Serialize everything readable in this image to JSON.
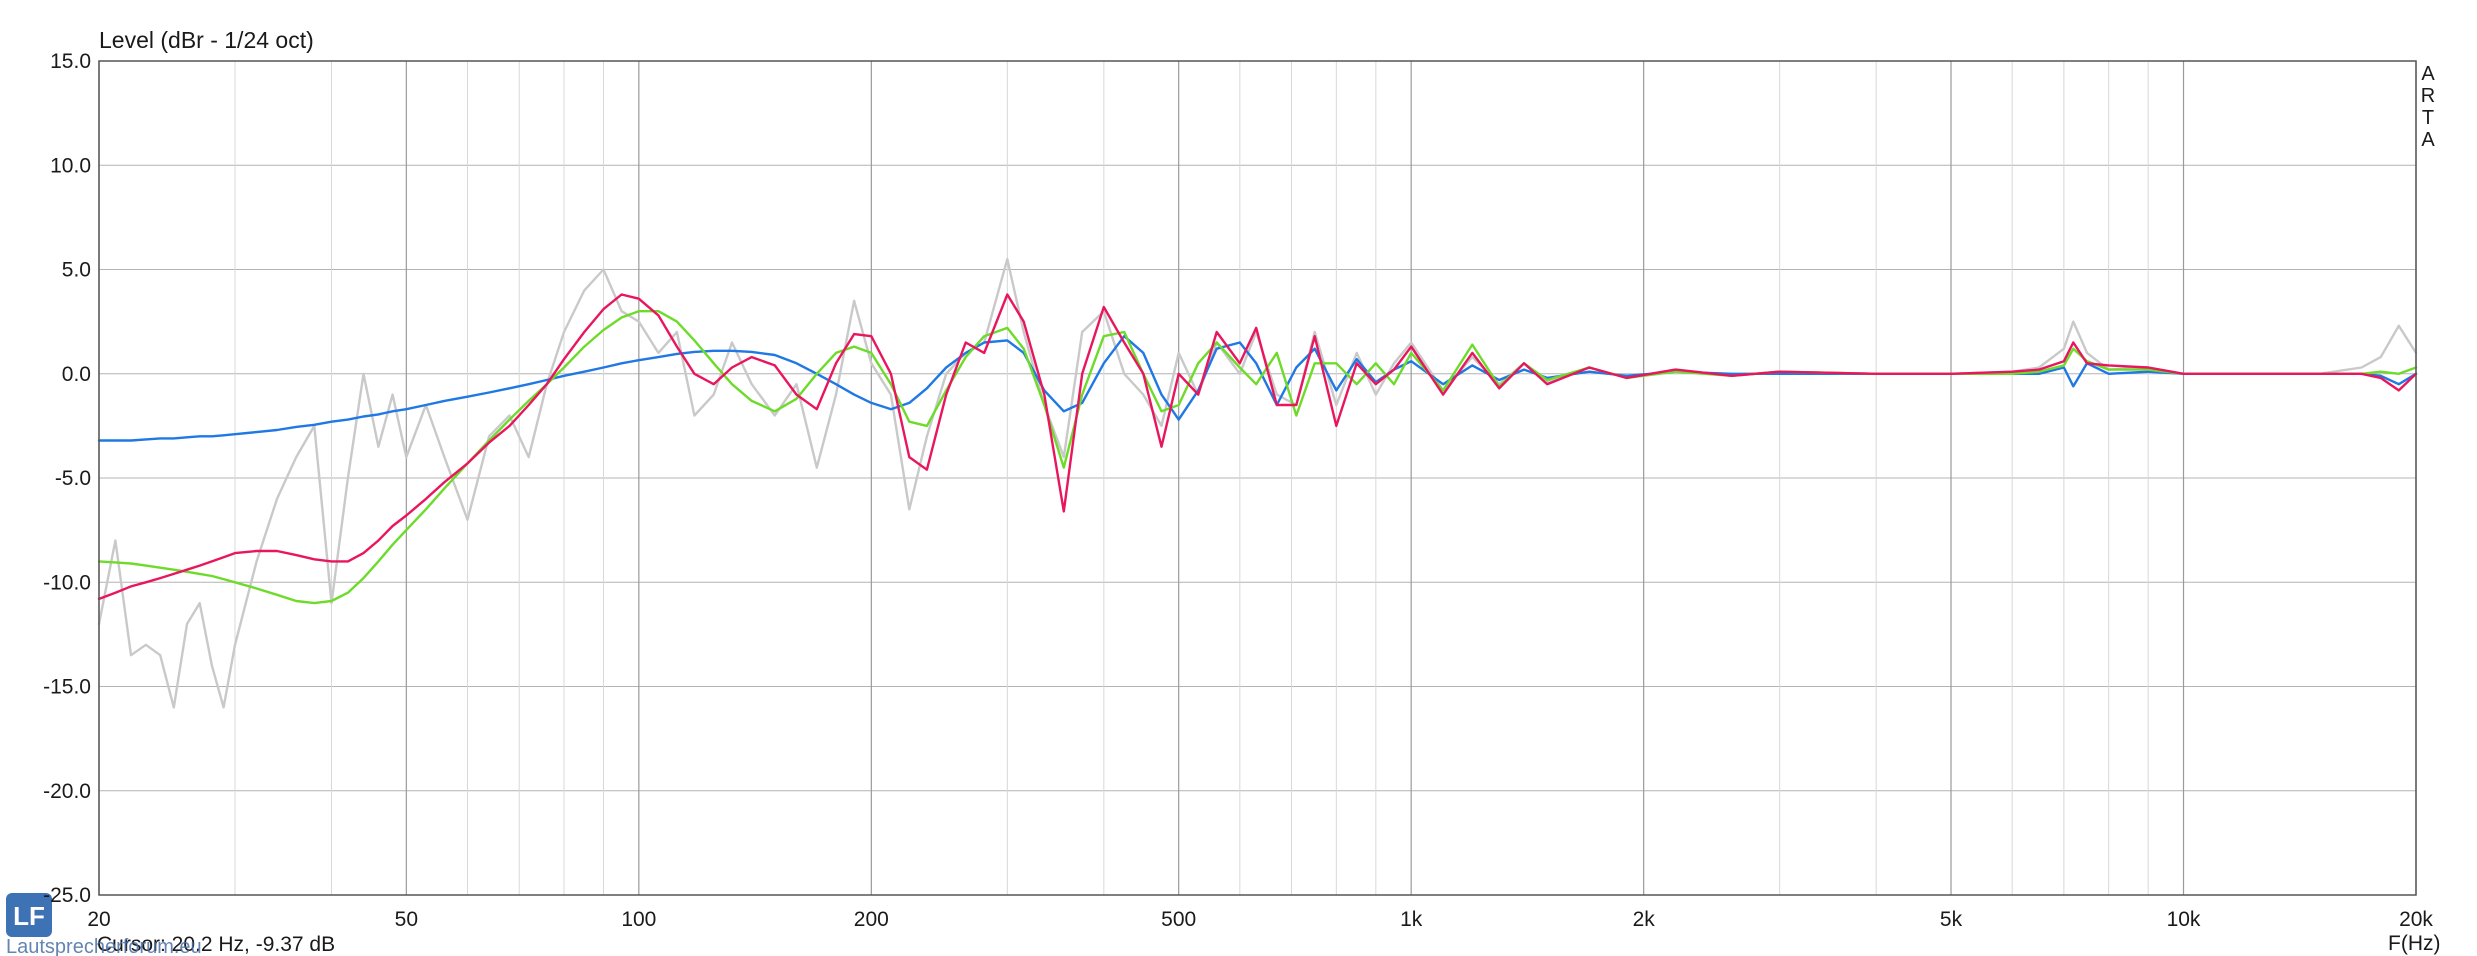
{
  "chart_data": {
    "type": "line",
    "title": "Level (dBr - 1/24 oct)",
    "x_label": "F(Hz)",
    "brand": [
      "A",
      "R",
      "T",
      "A"
    ],
    "cursor": "Cursor: 20.2 Hz, -9.37 dB",
    "logo": "LF",
    "watermark": "Lautsprecherforum.eu",
    "xscale": "log",
    "grid": true,
    "xlim": [
      20,
      20000
    ],
    "ylim": [
      -25,
      15
    ],
    "xticks": [
      20,
      50,
      100,
      200,
      500,
      {
        "value": 1000,
        "label": "1k"
      },
      {
        "value": 2000,
        "label": "2k"
      },
      {
        "value": 5000,
        "label": "5k"
      },
      {
        "value": 10000,
        "label": "10k"
      },
      {
        "value": 20000,
        "label": "20k"
      }
    ],
    "xminor": [
      30,
      40,
      60,
      70,
      80,
      90,
      300,
      400,
      600,
      700,
      800,
      900,
      3000,
      4000,
      6000,
      7000,
      8000,
      9000
    ],
    "yticks": [
      {
        "value": 15,
        "label": "15.0"
      },
      {
        "value": 10,
        "label": "10.0"
      },
      {
        "value": 5,
        "label": "5.0"
      },
      {
        "value": 0,
        "label": "0.0"
      },
      {
        "value": -5,
        "label": "-5.0"
      },
      {
        "value": -10,
        "label": "-10.0"
      },
      {
        "value": -15,
        "label": "-15.0"
      },
      {
        "value": -20,
        "label": "-20.0"
      },
      {
        "value": -25,
        "label": "-25.0"
      }
    ],
    "x": [
      20,
      21,
      22,
      23,
      24,
      25,
      26,
      27,
      28,
      29,
      30,
      32,
      34,
      36,
      38,
      40,
      42,
      44,
      46,
      48,
      50,
      53,
      56,
      60,
      64,
      68,
      72,
      76,
      80,
      85,
      90,
      95,
      100,
      106,
      112,
      118,
      125,
      132,
      140,
      150,
      160,
      170,
      180,
      190,
      200,
      212,
      224,
      236,
      250,
      265,
      280,
      300,
      315,
      335,
      355,
      375,
      400,
      425,
      450,
      475,
      500,
      530,
      560,
      600,
      630,
      670,
      710,
      750,
      800,
      850,
      900,
      950,
      1000,
      1100,
      1200,
      1300,
      1400,
      1500,
      1700,
      1900,
      2200,
      2600,
      3000,
      4000,
      5000,
      6000,
      6500,
      7000,
      7200,
      7500,
      8000,
      9000,
      10000,
      12000,
      15000,
      17000,
      18000,
      19000,
      20000
    ],
    "series": [
      {
        "color": "#c9c9c9",
        "values": [
          -12,
          -8,
          -13.5,
          -13,
          -13.5,
          -16,
          -12,
          -11,
          -14,
          -16,
          -13,
          -9,
          -6,
          -4,
          -2.5,
          -11,
          -5,
          0,
          -3.5,
          -1,
          -4,
          -1.5,
          -4,
          -7,
          -3,
          -2,
          -4,
          -0.5,
          2,
          4,
          5,
          3,
          2.5,
          1,
          2,
          -2,
          -1,
          1.5,
          -0.5,
          -2,
          -0.5,
          -4.5,
          -1,
          3.5,
          0.5,
          -1,
          -6.5,
          -3,
          0,
          1,
          1.5,
          5.5,
          2,
          -1.5,
          -4,
          2,
          3,
          0,
          -1,
          -2.5,
          1,
          -1,
          1.5,
          0,
          2,
          -1,
          -1.5,
          2,
          -1.5,
          1,
          -1,
          0.5,
          1.5,
          -0.8,
          0.8,
          -0.5,
          0.5,
          -0.4,
          0.3,
          -0.2,
          0.2,
          -0.1,
          0.1,
          0,
          0,
          0.1,
          0.3,
          1.2,
          2.5,
          1,
          0.2,
          0.3,
          0,
          0,
          0,
          0.3,
          0.8,
          2.3,
          1
        ]
      },
      {
        "color": "#1f78e4",
        "values": [
          -3.2,
          -3.2,
          -3.2,
          -3.15,
          -3.1,
          -3.1,
          -3.05,
          -3,
          -3,
          -2.95,
          -2.9,
          -2.8,
          -2.7,
          -2.55,
          -2.45,
          -2.3,
          -2.2,
          -2.05,
          -1.95,
          -1.8,
          -1.7,
          -1.5,
          -1.3,
          -1.1,
          -0.9,
          -0.7,
          -0.5,
          -0.3,
          -0.1,
          0.1,
          0.3,
          0.5,
          0.65,
          0.8,
          0.95,
          1.05,
          1.1,
          1.1,
          1.05,
          0.9,
          0.5,
          0,
          -0.5,
          -1,
          -1.4,
          -1.7,
          -1.4,
          -0.7,
          0.3,
          1,
          1.5,
          1.6,
          1,
          -0.8,
          -1.8,
          -1.4,
          0.5,
          1.8,
          1,
          -1,
          -2.2,
          -0.8,
          1.2,
          1.5,
          0.5,
          -1.5,
          0.3,
          1.2,
          -0.8,
          0.7,
          -0.4,
          0.2,
          0.6,
          -0.5,
          0.4,
          -0.3,
          0.2,
          -0.2,
          0.1,
          -0.1,
          0.1,
          0,
          0,
          0,
          0,
          0,
          0,
          0.3,
          -0.6,
          0.5,
          0,
          0.1,
          0,
          0,
          0,
          0,
          -0.1,
          -0.5,
          0
        ]
      },
      {
        "color": "#6edb2b",
        "values": [
          -9,
          -9.05,
          -9.1,
          -9.2,
          -9.3,
          -9.4,
          -9.5,
          -9.6,
          -9.7,
          -9.85,
          -10,
          -10.3,
          -10.6,
          -10.9,
          -11,
          -10.9,
          -10.5,
          -9.8,
          -9,
          -8.2,
          -7.5,
          -6.5,
          -5.5,
          -4.3,
          -3.2,
          -2.2,
          -1.3,
          -0.5,
          0.3,
          1.3,
          2.1,
          2.7,
          3,
          3,
          2.5,
          1.6,
          0.5,
          -0.5,
          -1.3,
          -1.8,
          -1.2,
          0,
          1,
          1.3,
          1,
          -0.5,
          -2.3,
          -2.5,
          -0.8,
          0.8,
          1.8,
          2.2,
          1.2,
          -1.5,
          -4.5,
          -1,
          1.8,
          2,
          0,
          -1.8,
          -1.5,
          0.5,
          1.5,
          0.3,
          -0.5,
          1,
          -2,
          0.5,
          0.5,
          -0.5,
          0.5,
          -0.5,
          1,
          -0.8,
          1.4,
          -0.6,
          0.5,
          -0.3,
          0.3,
          -0.2,
          0.1,
          -0.1,
          0.1,
          0,
          0,
          0,
          0.1,
          0.4,
          1.2,
          0.6,
          0.2,
          0.2,
          0,
          0,
          0,
          0,
          0.1,
          0,
          0.3
        ]
      },
      {
        "color": "#e8175d",
        "values": [
          -10.8,
          -10.5,
          -10.2,
          -10,
          -9.8,
          -9.6,
          -9.4,
          -9.2,
          -9,
          -8.8,
          -8.6,
          -8.5,
          -8.5,
          -8.7,
          -8.9,
          -9,
          -9,
          -8.6,
          -8,
          -7.3,
          -6.8,
          -6,
          -5.2,
          -4.3,
          -3.3,
          -2.5,
          -1.5,
          -0.5,
          0.7,
          2,
          3.1,
          3.8,
          3.6,
          2.8,
          1.3,
          0,
          -0.5,
          0.3,
          0.8,
          0.4,
          -1,
          -1.7,
          0.5,
          1.9,
          1.8,
          0,
          -4,
          -4.6,
          -1,
          1.5,
          1,
          3.8,
          2.5,
          -1,
          -6.6,
          0,
          3.2,
          1.5,
          0,
          -3.5,
          0,
          -1,
          2,
          0.5,
          2.2,
          -1.5,
          -1.5,
          1.8,
          -2.5,
          0.5,
          -0.5,
          0.2,
          1.3,
          -1,
          1,
          -0.7,
          0.5,
          -0.5,
          0.3,
          -0.2,
          0.2,
          -0.1,
          0.1,
          0,
          0,
          0.1,
          0.2,
          0.6,
          1.5,
          0.5,
          0.4,
          0.3,
          0,
          0,
          0,
          0,
          -0.2,
          -0.8,
          0
        ]
      }
    ]
  }
}
